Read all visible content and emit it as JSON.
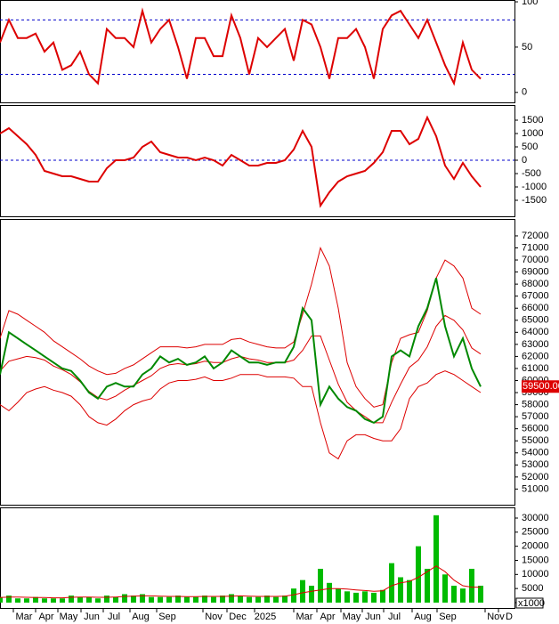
{
  "chart_data": [
    {
      "type": "line",
      "ylim": [
        -11,
        102
      ],
      "yticks": [
        0,
        50,
        100
      ],
      "xlim": [
        0,
        57.8
      ],
      "hlines": [
        {
          "value": 80,
          "color": "#0000cc"
        },
        {
          "value": 20,
          "color": "#0000cc"
        }
      ],
      "x": [
        0,
        1,
        2,
        3,
        4,
        5,
        6,
        7,
        8,
        9,
        10,
        11,
        12,
        13,
        14,
        15,
        16,
        17,
        18,
        19,
        20,
        21,
        22,
        23,
        24,
        25,
        26,
        27,
        28,
        29,
        30,
        31,
        32,
        33,
        34,
        35,
        36,
        37,
        38,
        39,
        40,
        41,
        42,
        43,
        44,
        45,
        46,
        47,
        48,
        49,
        50,
        51,
        52,
        53,
        54
      ],
      "series": [
        {
          "color": "#dd0000",
          "type": "line",
          "values": [
            55,
            80,
            60,
            60,
            65,
            45,
            55,
            25,
            30,
            45,
            20,
            10,
            70,
            60,
            60,
            50,
            90,
            55,
            70,
            80,
            50,
            15,
            60,
            60,
            40,
            40,
            85,
            60,
            20,
            60,
            50,
            60,
            70,
            35,
            80,
            75,
            50,
            15,
            60,
            60,
            70,
            50,
            15,
            70,
            85,
            90,
            75,
            60,
            80,
            55,
            30,
            10,
            55,
            25,
            15
          ]
        }
      ]
    },
    {
      "type": "line",
      "ylim": [
        -2100,
        2067
      ],
      "yticks": [
        -1500,
        -1000,
        -500,
        0,
        500,
        1000,
        1500
      ],
      "xlim": [
        0,
        57.8
      ],
      "hlines": [
        {
          "value": 0,
          "color": "#0000cc"
        }
      ],
      "x": [
        0,
        1,
        2,
        3,
        4,
        5,
        6,
        7,
        8,
        9,
        10,
        11,
        12,
        13,
        14,
        15,
        16,
        17,
        18,
        19,
        20,
        21,
        22,
        23,
        24,
        25,
        26,
        27,
        28,
        29,
        30,
        31,
        32,
        33,
        34,
        35,
        36,
        37,
        38,
        39,
        40,
        41,
        42,
        43,
        44,
        45,
        46,
        47,
        48,
        49,
        50,
        51,
        52,
        53,
        54
      ],
      "series": [
        {
          "color": "#dd0000",
          "type": "line",
          "values": [
            1000,
            1200,
            900,
            600,
            200,
            -400,
            -500,
            -600,
            -600,
            -700,
            -800,
            -800,
            -300,
            0,
            0,
            100,
            500,
            700,
            300,
            200,
            100,
            100,
            0,
            100,
            0,
            -200,
            200,
            0,
            -200,
            -200,
            -100,
            -100,
            0,
            400,
            1100,
            500,
            -1700,
            -1200,
            -800,
            -600,
            -500,
            -400,
            -100,
            300,
            1100,
            1100,
            600,
            800,
            1600,
            900,
            -200,
            -700,
            -100,
            -600,
            -1000
          ]
        }
      ]
    },
    {
      "type": "line",
      "ylim": [
        49700,
        73400
      ],
      "yticks": [
        51000,
        52000,
        53000,
        54000,
        55000,
        56000,
        57000,
        58000,
        59000,
        60000,
        61000,
        62000,
        63000,
        64000,
        65000,
        66000,
        67000,
        68000,
        69000,
        70000,
        71000,
        72000
      ],
      "xlim": [
        0,
        57.8
      ],
      "last_label": {
        "value": 59500,
        "label": "59500.00"
      },
      "x": [
        0,
        1,
        2,
        3,
        4,
        5,
        6,
        7,
        8,
        9,
        10,
        11,
        12,
        13,
        14,
        15,
        16,
        17,
        18,
        19,
        20,
        21,
        22,
        23,
        24,
        25,
        26,
        27,
        28,
        29,
        30,
        31,
        32,
        33,
        34,
        35,
        36,
        37,
        38,
        39,
        40,
        41,
        42,
        43,
        44,
        45,
        46,
        47,
        48,
        49,
        50,
        51,
        52,
        53,
        54
      ],
      "series": [
        {
          "color": "#dd0000",
          "type": "line",
          "values": [
            63500,
            65800,
            65500,
            65000,
            64500,
            64000,
            63300,
            62800,
            62300,
            61800,
            61200,
            60800,
            60500,
            60600,
            61000,
            61300,
            61800,
            62300,
            62800,
            62800,
            62800,
            62700,
            62800,
            63000,
            63000,
            63000,
            63400,
            63500,
            63200,
            63000,
            62800,
            62700,
            62700,
            63200,
            65500,
            68000,
            71000,
            69500,
            66000,
            61500,
            59500,
            58500,
            57800,
            58000,
            61500,
            63500,
            63800,
            64000,
            65800,
            68500,
            70000,
            69500,
            68500,
            66000,
            65500
          ]
        },
        {
          "color": "#dd0000",
          "type": "line",
          "values": [
            60800,
            61600,
            61800,
            62000,
            61900,
            61700,
            61200,
            60900,
            60500,
            59900,
            59100,
            58600,
            58400,
            58700,
            59200,
            59600,
            60000,
            60400,
            61000,
            61300,
            61400,
            61300,
            61400,
            61600,
            61500,
            61500,
            61800,
            62000,
            61800,
            61700,
            61500,
            61500,
            61500,
            61700,
            62500,
            63700,
            63700,
            61700,
            59700,
            58200,
            57500,
            57000,
            56500,
            56500,
            58200,
            59700,
            61100,
            61700,
            62800,
            64500,
            65400,
            65000,
            64200,
            62700,
            62200
          ]
        },
        {
          "color": "#dd0000",
          "type": "line",
          "values": [
            58000,
            57500,
            58200,
            59000,
            59300,
            59500,
            59200,
            59000,
            58700,
            58000,
            57000,
            56500,
            56300,
            56800,
            57500,
            58000,
            58300,
            58500,
            59300,
            59800,
            60000,
            60000,
            60100,
            60300,
            60000,
            60000,
            60200,
            60500,
            60500,
            60500,
            60300,
            60300,
            60300,
            60200,
            59500,
            59500,
            56500,
            54000,
            53500,
            55000,
            55500,
            55500,
            55200,
            55000,
            55000,
            56000,
            58500,
            59500,
            59800,
            60500,
            60800,
            60500,
            60000,
            59500,
            59000
          ]
        },
        {
          "color": "#008800",
          "type": "line",
          "values": [
            60500,
            64000,
            63500,
            63000,
            62500,
            62000,
            61500,
            61000,
            60800,
            60000,
            59000,
            58500,
            59500,
            59800,
            59500,
            59500,
            60500,
            61000,
            62000,
            61500,
            61800,
            61300,
            61500,
            62000,
            61000,
            61500,
            62500,
            62000,
            61500,
            61500,
            61300,
            61500,
            61500,
            62800,
            66000,
            65000,
            58000,
            59500,
            58500,
            57800,
            57500,
            56800,
            56500,
            57000,
            62000,
            62500,
            62000,
            64500,
            66000,
            68500,
            64500,
            62000,
            63500,
            61000,
            59500
          ]
        }
      ]
    },
    {
      "type": "bar",
      "ylim": [
        -1900,
        33790
      ],
      "yticks": [
        0,
        5000,
        10000,
        15000,
        20000,
        25000,
        30000
      ],
      "xlim": [
        0,
        57.8
      ],
      "unit_label": "x1000",
      "xticks": [
        {
          "value": 2.7,
          "label": "Mar"
        },
        {
          "value": 5.2,
          "label": "Apr"
        },
        {
          "value": 7.7,
          "label": "May"
        },
        {
          "value": 10.3,
          "label": "Jun"
        },
        {
          "value": 12.8,
          "label": "Jul"
        },
        {
          "value": 15.8,
          "label": "Aug"
        },
        {
          "value": 18.8,
          "label": "Sep"
        },
        {
          "value": 24,
          "label": "Nov"
        },
        {
          "value": 26.7,
          "label": "Dec"
        },
        {
          "value": 29.8,
          "label": "2025"
        },
        {
          "value": 34.2,
          "label": "Mar"
        },
        {
          "value": 36.8,
          "label": "Apr"
        },
        {
          "value": 39.5,
          "label": "May"
        },
        {
          "value": 41.9,
          "label": "Jun"
        },
        {
          "value": 44.3,
          "label": "Jul"
        },
        {
          "value": 47.5,
          "label": "Aug"
        },
        {
          "value": 50.3,
          "label": "Sep"
        },
        {
          "value": 55.7,
          "label": "Nov"
        },
        {
          "value": 57.2,
          "label": "D"
        }
      ],
      "x": [
        0,
        1,
        2,
        3,
        4,
        5,
        6,
        7,
        8,
        9,
        10,
        11,
        12,
        13,
        14,
        15,
        16,
        17,
        18,
        19,
        20,
        21,
        22,
        23,
        24,
        25,
        26,
        27,
        28,
        29,
        30,
        31,
        32,
        33,
        34,
        35,
        36,
        37,
        38,
        39,
        40,
        41,
        42,
        43,
        44,
        45,
        46,
        47,
        48,
        49,
        50,
        51,
        52,
        53,
        54
      ],
      "series": [
        {
          "color": "#00bb00",
          "type": "bar",
          "values": [
            2000,
            2500,
            1500,
            1500,
            2000,
            1500,
            1500,
            1500,
            2500,
            2000,
            2000,
            1500,
            2500,
            2000,
            3000,
            2500,
            3000,
            2000,
            2000,
            2000,
            2500,
            2000,
            2000,
            2500,
            2000,
            2500,
            3000,
            2500,
            2000,
            2000,
            2500,
            2000,
            2500,
            5000,
            8000,
            6000,
            12000,
            7000,
            5000,
            4000,
            3500,
            4000,
            3500,
            4500,
            14000,
            9000,
            8000,
            20000,
            12000,
            31000,
            10000,
            6000,
            5000,
            12000,
            6000
          ]
        },
        {
          "color": "#dd0000",
          "type": "line",
          "values": [
            1800,
            2000,
            2000,
            1900,
            1800,
            1800,
            1700,
            1700,
            1900,
            2000,
            2000,
            1900,
            1900,
            2000,
            2200,
            2300,
            2400,
            2400,
            2300,
            2200,
            2200,
            2100,
            2100,
            2200,
            2200,
            2200,
            2300,
            2400,
            2300,
            2200,
            2200,
            2200,
            2300,
            2800,
            3500,
            4000,
            4500,
            5000,
            5000,
            4800,
            4500,
            4300,
            4000,
            4200,
            6000,
            7000,
            7500,
            9000,
            11000,
            13000,
            11000,
            8000,
            6000,
            5500,
            5500
          ]
        }
      ]
    }
  ]
}
